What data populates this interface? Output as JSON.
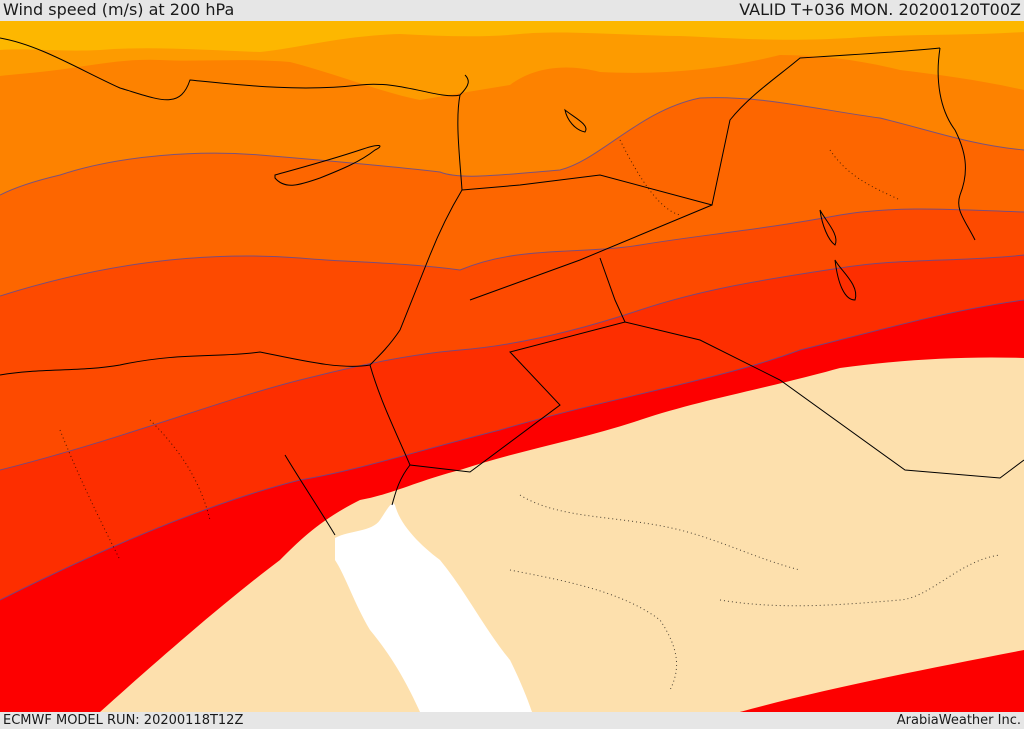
{
  "header": {
    "title": "Wind speed (m/s) at 200 hPa",
    "valid": "VALID T+036 MON. 20200120T00Z"
  },
  "footer": {
    "model_run": "ECMWF MODEL RUN: 20200118T12Z",
    "credit": "ArabiaWeather Inc."
  },
  "colors": {
    "band_1": "#fdb700",
    "band_2": "#fd9b00",
    "band_3": "#fd8200",
    "band_4": "#fd6600",
    "band_5": "#fd4a00",
    "band_6": "#fd2e00",
    "band_7": "#fd0000",
    "calm_land": "#fde0ad",
    "sea": "#ffffff",
    "contour": "#5a4a9a",
    "border": "#000000"
  }
}
